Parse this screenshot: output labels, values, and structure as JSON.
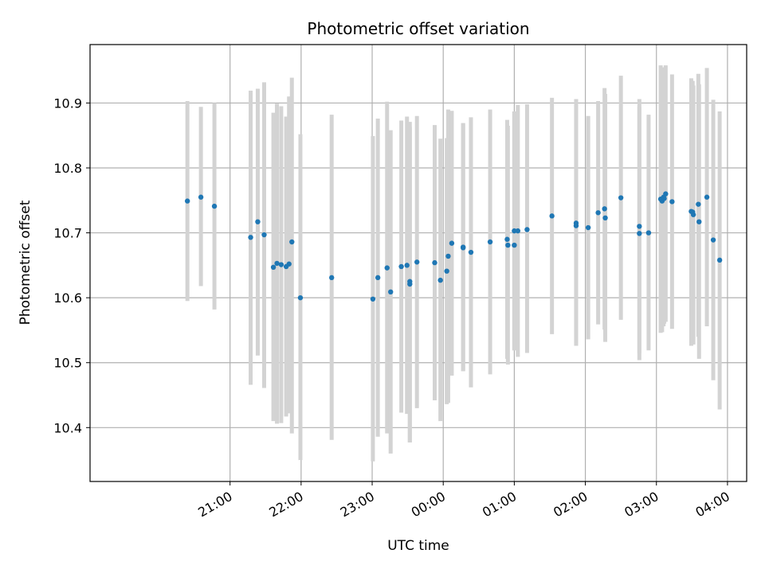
{
  "chart_data": {
    "type": "scatter",
    "title": "Photometric offset variation",
    "xlabel": "UTC time",
    "ylabel": "Photometric offset",
    "x_unit": "hours since 00:00 UTC",
    "xlim": [
      -4.97,
      4.27
    ],
    "ylim": [
      10.317,
      10.99
    ],
    "x_ticks": [
      {
        "value": -3.0,
        "label": "21:00"
      },
      {
        "value": -2.0,
        "label": "22:00"
      },
      {
        "value": -1.0,
        "label": "23:00"
      },
      {
        "value": 0.0,
        "label": "00:00"
      },
      {
        "value": 1.0,
        "label": "01:00"
      },
      {
        "value": 2.0,
        "label": "02:00"
      },
      {
        "value": 3.0,
        "label": "03:00"
      },
      {
        "value": 4.0,
        "label": "04:00"
      }
    ],
    "y_ticks": [
      10.4,
      10.5,
      10.6,
      10.7,
      10.8,
      10.9
    ],
    "grid": true,
    "marker_color": "#1f77b4",
    "errorbar_color": "#d3d3d3",
    "series": [
      {
        "name": "",
        "points": [
          {
            "x": -3.6,
            "y": 10.749,
            "lo": 10.595,
            "hi": 10.903
          },
          {
            "x": -3.41,
            "y": 10.755,
            "lo": 10.618,
            "hi": 10.894
          },
          {
            "x": -3.22,
            "y": 10.741,
            "lo": 10.582,
            "hi": 10.9
          },
          {
            "x": -2.71,
            "y": 10.693,
            "lo": 10.466,
            "hi": 10.919
          },
          {
            "x": -2.61,
            "y": 10.717,
            "lo": 10.511,
            "hi": 10.922
          },
          {
            "x": -2.52,
            "y": 10.697,
            "lo": 10.461,
            "hi": 10.932
          },
          {
            "x": -2.39,
            "y": 10.647,
            "lo": 10.41,
            "hi": 10.885
          },
          {
            "x": -2.34,
            "y": 10.653,
            "lo": 10.406,
            "hi": 10.899
          },
          {
            "x": -2.28,
            "y": 10.651,
            "lo": 10.407,
            "hi": 10.895
          },
          {
            "x": -2.21,
            "y": 10.648,
            "lo": 10.417,
            "hi": 10.879
          },
          {
            "x": -2.17,
            "y": 10.652,
            "lo": 10.422,
            "hi": 10.91
          },
          {
            "x": -2.13,
            "y": 10.686,
            "lo": 10.391,
            "hi": 10.939
          },
          {
            "x": -2.01,
            "y": 10.6,
            "lo": 10.35,
            "hi": 10.852
          },
          {
            "x": -1.57,
            "y": 10.631,
            "lo": 10.381,
            "hi": 10.882
          },
          {
            "x": -0.99,
            "y": 10.598,
            "lo": 10.348,
            "hi": 10.849
          },
          {
            "x": -0.92,
            "y": 10.631,
            "lo": 10.386,
            "hi": 10.876
          },
          {
            "x": -0.79,
            "y": 10.646,
            "lo": 10.391,
            "hi": 10.902
          },
          {
            "x": -0.74,
            "y": 10.609,
            "lo": 10.36,
            "hi": 10.858
          },
          {
            "x": -0.59,
            "y": 10.648,
            "lo": 10.423,
            "hi": 10.873
          },
          {
            "x": -0.51,
            "y": 10.65,
            "lo": 10.421,
            "hi": 10.879
          },
          {
            "x": -0.47,
            "y": 10.625,
            "lo": 10.377,
            "hi": 10.871
          },
          {
            "x": -0.47,
            "y": 10.621,
            "lo": 10.377,
            "hi": 10.863
          },
          {
            "x": -0.37,
            "y": 10.655,
            "lo": 10.43,
            "hi": 10.88
          },
          {
            "x": -0.12,
            "y": 10.654,
            "lo": 10.442,
            "hi": 10.866
          },
          {
            "x": -0.04,
            "y": 10.627,
            "lo": 10.41,
            "hi": 10.845
          },
          {
            "x": 0.05,
            "y": 10.641,
            "lo": 10.436,
            "hi": 10.846
          },
          {
            "x": 0.07,
            "y": 10.664,
            "lo": 10.438,
            "hi": 10.89
          },
          {
            "x": 0.12,
            "y": 10.684,
            "lo": 10.48,
            "hi": 10.888
          },
          {
            "x": 0.28,
            "y": 10.678,
            "lo": 10.487,
            "hi": 10.869
          },
          {
            "x": 0.28,
            "y": 10.677,
            "lo": 10.487,
            "hi": 10.869
          },
          {
            "x": 0.39,
            "y": 10.67,
            "lo": 10.462,
            "hi": 10.878
          },
          {
            "x": 0.66,
            "y": 10.686,
            "lo": 10.482,
            "hi": 10.89
          },
          {
            "x": 0.9,
            "y": 10.69,
            "lo": 10.506,
            "hi": 10.874
          },
          {
            "x": 0.91,
            "y": 10.681,
            "lo": 10.497,
            "hi": 10.865
          },
          {
            "x": 1.0,
            "y": 10.703,
            "lo": 10.519,
            "hi": 10.887
          },
          {
            "x": 1.0,
            "y": 10.681,
            "lo": 10.519,
            "hi": 10.887
          },
          {
            "x": 1.05,
            "y": 10.703,
            "lo": 10.509,
            "hi": 10.897
          },
          {
            "x": 1.18,
            "y": 10.705,
            "lo": 10.515,
            "hi": 10.898
          },
          {
            "x": 1.53,
            "y": 10.726,
            "lo": 10.544,
            "hi": 10.908
          },
          {
            "x": 1.87,
            "y": 10.715,
            "lo": 10.526,
            "hi": 10.906
          },
          {
            "x": 1.87,
            "y": 10.711,
            "lo": 10.526,
            "hi": 10.906
          },
          {
            "x": 2.04,
            "y": 10.708,
            "lo": 10.536,
            "hi": 10.88
          },
          {
            "x": 2.18,
            "y": 10.731,
            "lo": 10.559,
            "hi": 10.903
          },
          {
            "x": 2.27,
            "y": 10.737,
            "lo": 10.551,
            "hi": 10.923
          },
          {
            "x": 2.28,
            "y": 10.723,
            "lo": 10.532,
            "hi": 10.914
          },
          {
            "x": 2.5,
            "y": 10.754,
            "lo": 10.566,
            "hi": 10.942
          },
          {
            "x": 2.76,
            "y": 10.699,
            "lo": 10.504,
            "hi": 10.894
          },
          {
            "x": 2.76,
            "y": 10.71,
            "lo": 10.514,
            "hi": 10.906
          },
          {
            "x": 2.89,
            "y": 10.7,
            "lo": 10.519,
            "hi": 10.882
          },
          {
            "x": 3.06,
            "y": 10.752,
            "lo": 10.546,
            "hi": 10.958
          },
          {
            "x": 3.08,
            "y": 10.749,
            "lo": 10.547,
            "hi": 10.952
          },
          {
            "x": 3.1,
            "y": 10.755,
            "lo": 10.556,
            "hi": 10.955
          },
          {
            "x": 3.11,
            "y": 10.753,
            "lo": 10.56,
            "hi": 10.945
          },
          {
            "x": 3.13,
            "y": 10.76,
            "lo": 10.563,
            "hi": 10.958
          },
          {
            "x": 3.22,
            "y": 10.748,
            "lo": 10.552,
            "hi": 10.944
          },
          {
            "x": 3.49,
            "y": 10.733,
            "lo": 10.526,
            "hi": 10.938
          },
          {
            "x": 3.51,
            "y": 10.732,
            "lo": 10.53,
            "hi": 10.934
          },
          {
            "x": 3.52,
            "y": 10.728,
            "lo": 10.528,
            "hi": 10.927
          },
          {
            "x": 3.59,
            "y": 10.744,
            "lo": 10.54,
            "hi": 10.945
          },
          {
            "x": 3.6,
            "y": 10.717,
            "lo": 10.506,
            "hi": 10.929
          },
          {
            "x": 3.71,
            "y": 10.755,
            "lo": 10.556,
            "hi": 10.954
          },
          {
            "x": 3.8,
            "y": 10.689,
            "lo": 10.473,
            "hi": 10.905
          },
          {
            "x": 3.89,
            "y": 10.658,
            "lo": 10.428,
            "hi": 10.887
          }
        ]
      }
    ]
  }
}
